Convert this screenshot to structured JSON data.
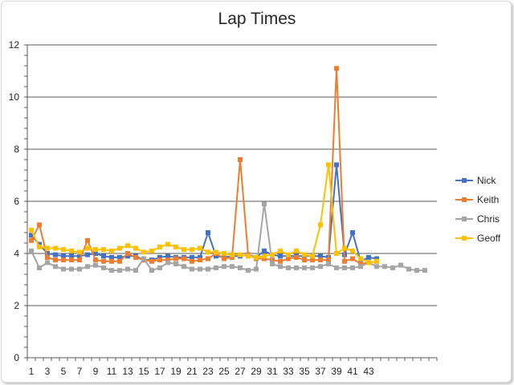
{
  "chart_data": {
    "type": "line",
    "title": "Lap Times",
    "xlabel": "",
    "ylabel": "",
    "ylim": [
      0,
      12
    ],
    "yticks": [
      0,
      2,
      4,
      6,
      8,
      10,
      12
    ],
    "x_count": 51,
    "xtick_labels": [
      "1",
      "3",
      "5",
      "7",
      "9",
      "11",
      "13",
      "15",
      "17",
      "19",
      "21",
      "23",
      "25",
      "27",
      "29",
      "31",
      "33",
      "35",
      "37",
      "39",
      "41",
      "43"
    ],
    "grid": "horizontal",
    "legend_position": "right",
    "series": [
      {
        "name": "Nick",
        "color": "#4472c4",
        "values": [
          4.7,
          4.35,
          4.0,
          3.95,
          3.9,
          3.9,
          3.9,
          3.95,
          4.0,
          3.9,
          3.85,
          3.85,
          3.9,
          3.9,
          3.75,
          3.75,
          3.85,
          3.9,
          3.85,
          3.85,
          3.85,
          3.85,
          4.8,
          3.9,
          3.85,
          3.9,
          3.9,
          3.95,
          3.85,
          4.1,
          3.95,
          3.9,
          3.9,
          3.9,
          3.9,
          3.9,
          3.9,
          3.85,
          7.4,
          3.95,
          4.8,
          3.7,
          3.85,
          3.8
        ]
      },
      {
        "name": "Keith",
        "color": "#ed7d31",
        "values": [
          4.5,
          5.1,
          3.85,
          3.75,
          3.75,
          3.75,
          3.75,
          4.5,
          3.75,
          3.7,
          3.7,
          3.7,
          4.0,
          3.85,
          3.75,
          3.7,
          3.75,
          3.75,
          3.8,
          3.8,
          3.7,
          3.75,
          3.8,
          4.0,
          3.8,
          3.85,
          7.6,
          3.95,
          3.8,
          3.8,
          3.75,
          3.7,
          3.8,
          3.85,
          3.75,
          3.75,
          3.75,
          3.75,
          11.1,
          3.7,
          3.8,
          3.6,
          3.65,
          3.7
        ]
      },
      {
        "name": "Chris",
        "color": "#a5a5a5",
        "values": [
          4.1,
          3.45,
          3.65,
          3.5,
          3.4,
          3.4,
          3.4,
          3.5,
          3.55,
          3.45,
          3.35,
          3.35,
          3.4,
          3.35,
          3.8,
          3.35,
          3.45,
          3.65,
          3.6,
          3.5,
          3.4,
          3.4,
          3.4,
          3.45,
          3.5,
          3.5,
          3.45,
          3.35,
          3.4,
          5.9,
          3.6,
          3.5,
          3.45,
          3.45,
          3.45,
          3.45,
          3.5,
          3.6,
          3.45,
          3.45,
          3.45,
          3.5,
          3.65,
          3.5,
          3.5,
          3.45,
          3.55,
          3.4,
          3.35,
          3.35
        ]
      },
      {
        "name": "Geoff",
        "color": "#ffc000",
        "values": [
          4.9,
          4.25,
          4.2,
          4.2,
          4.15,
          4.1,
          4.05,
          4.2,
          4.15,
          4.15,
          4.1,
          4.2,
          4.3,
          4.2,
          4.05,
          4.1,
          4.25,
          4.35,
          4.25,
          4.15,
          4.15,
          4.2,
          4.05,
          4.05,
          4.0,
          3.95,
          3.95,
          3.9,
          3.85,
          3.9,
          3.95,
          4.1,
          3.95,
          4.1,
          3.95,
          3.9,
          5.1,
          7.4,
          4.0,
          4.2,
          4.1,
          3.8,
          3.65,
          3.7
        ]
      }
    ]
  }
}
